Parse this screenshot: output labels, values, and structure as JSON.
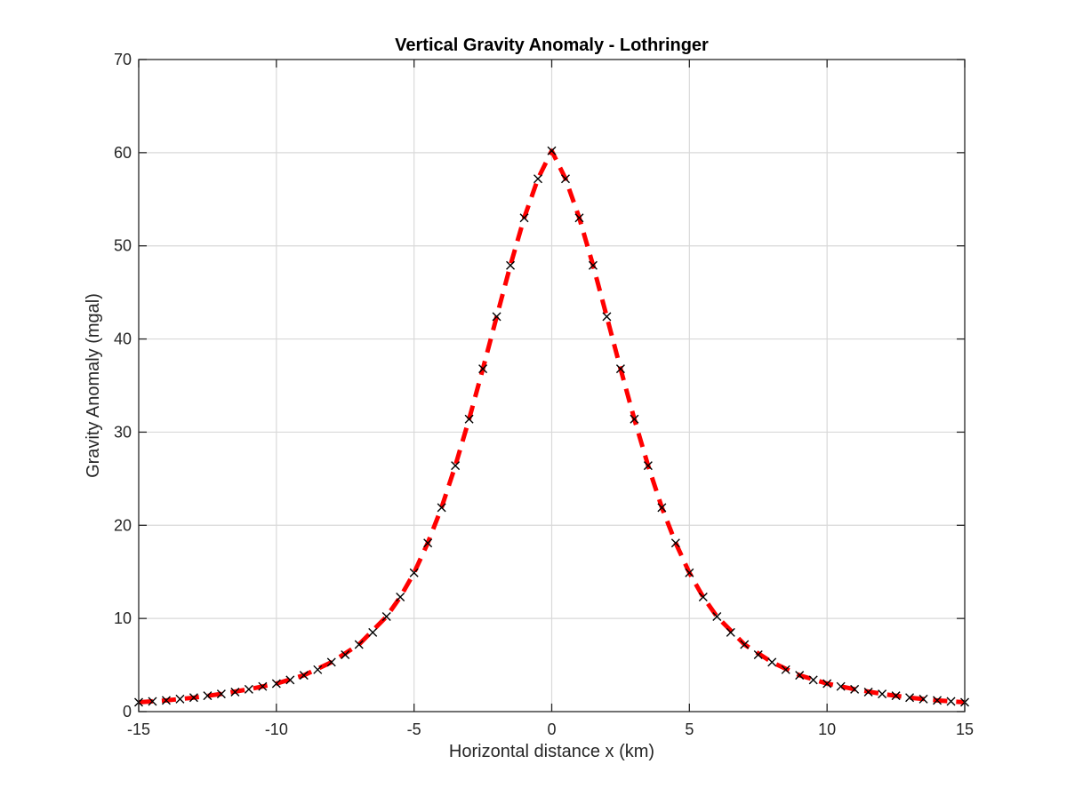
{
  "chart_data": {
    "type": "line",
    "title": "Vertical Gravity Anomaly - Lothringer",
    "xlabel": "Horizontal distance x (km)",
    "ylabel": "Gravity Anomaly (mgal)",
    "xlim": [
      -15,
      15
    ],
    "ylim": [
      0,
      70
    ],
    "xticks": [
      -15,
      -10,
      -5,
      0,
      5,
      10,
      15
    ],
    "xtick_labels": [
      "-15",
      "-10",
      "-5",
      "0",
      "5",
      "10",
      "15"
    ],
    "yticks": [
      0,
      10,
      20,
      30,
      40,
      50,
      60,
      70
    ],
    "ytick_labels": [
      "0",
      "10",
      "20",
      "30",
      "40",
      "50",
      "60",
      "70"
    ],
    "grid": true,
    "series": [
      {
        "style": "dashed-line",
        "color": "#ff0000",
        "x": [
          -15,
          -14,
          -13,
          -12,
          -11,
          -10,
          -9,
          -8,
          -7,
          -6,
          -5.5,
          -5,
          -4.5,
          -4,
          -3.5,
          -3,
          -2.5,
          -2,
          -1.5,
          -1,
          -0.5,
          0,
          0.5,
          1,
          1.5,
          2,
          2.5,
          3,
          3.5,
          4,
          4.5,
          5,
          5.5,
          6,
          7,
          8,
          9,
          10,
          11,
          12,
          13,
          14,
          15
        ],
        "y": [
          1.0,
          1.2,
          1.5,
          1.9,
          2.4,
          3.0,
          3.9,
          5.3,
          7.2,
          10.2,
          12.3,
          14.9,
          18.1,
          21.9,
          26.4,
          31.4,
          36.8,
          42.4,
          47.9,
          53.0,
          57.2,
          60.2,
          57.2,
          53.0,
          47.9,
          42.4,
          36.8,
          31.4,
          26.4,
          21.9,
          18.1,
          14.9,
          12.3,
          10.2,
          7.2,
          5.3,
          3.9,
          3.0,
          2.4,
          1.9,
          1.5,
          1.2,
          1.0
        ]
      },
      {
        "style": "x-markers",
        "color": "#000000",
        "x": [
          -15,
          -14.5,
          -14,
          -13.5,
          -13,
          -12.5,
          -12,
          -11.5,
          -11,
          -10.5,
          -10,
          -9.5,
          -9,
          -8.5,
          -8,
          -7.5,
          -7,
          -6.5,
          -6,
          -5.5,
          -5,
          -4.5,
          -4,
          -3.5,
          -3,
          -2.5,
          -2,
          -1.5,
          -1,
          -0.5,
          0,
          0.5,
          1,
          1.5,
          2,
          2.5,
          3,
          3.5,
          4,
          4.5,
          5,
          5.5,
          6,
          6.5,
          7,
          7.5,
          8,
          8.5,
          9,
          9.5,
          10,
          10.5,
          11,
          11.5,
          12,
          12.5,
          13,
          13.5,
          14,
          14.5,
          15
        ],
        "y": [
          1.0,
          1.1,
          1.2,
          1.35,
          1.5,
          1.7,
          1.9,
          2.1,
          2.4,
          2.7,
          3.0,
          3.4,
          3.9,
          4.5,
          5.3,
          6.1,
          7.2,
          8.5,
          10.2,
          12.3,
          14.9,
          18.1,
          21.9,
          26.4,
          31.4,
          36.8,
          42.4,
          47.9,
          53.0,
          57.2,
          60.2,
          57.2,
          53.0,
          47.9,
          42.4,
          36.8,
          31.4,
          26.4,
          21.9,
          18.1,
          14.9,
          12.3,
          10.2,
          8.5,
          7.2,
          6.1,
          5.3,
          4.5,
          3.9,
          3.4,
          3.0,
          2.7,
          2.4,
          2.1,
          1.9,
          1.7,
          1.5,
          1.35,
          1.2,
          1.1,
          1.0
        ]
      }
    ]
  }
}
